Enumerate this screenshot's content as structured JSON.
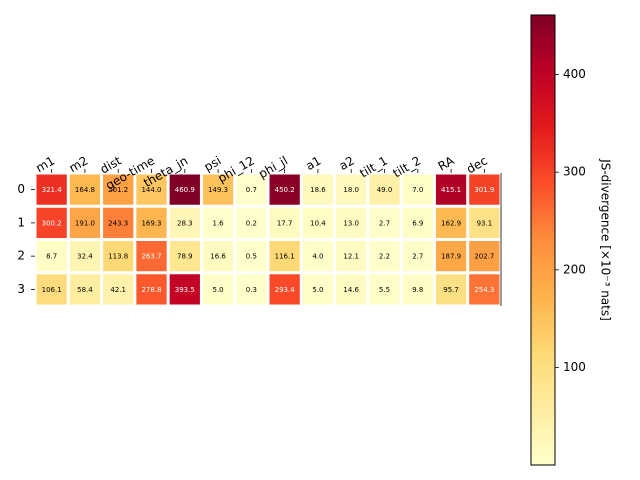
{
  "chart_data": {
    "type": "heatmap",
    "columns": [
      "m1",
      "m2",
      "dist",
      "geo-time",
      "theta_jn",
      "psi",
      "phi_12",
      "phi_jl",
      "a1",
      "a2",
      "tilt_1",
      "tilt_2",
      "RA",
      "dec"
    ],
    "rows": [
      "0",
      "1",
      "2",
      "3"
    ],
    "values": [
      [
        321.4,
        164.8,
        201.2,
        144.0,
        460.9,
        149.3,
        0.7,
        450.2,
        18.6,
        18.0,
        49.0,
        7.0,
        415.1,
        301.9
      ],
      [
        300.2,
        191.0,
        243.3,
        169.3,
        28.3,
        1.6,
        0.2,
        17.7,
        10.4,
        13.0,
        2.7,
        6.9,
        162.9,
        93.1
      ],
      [
        8.7,
        32.4,
        113.8,
        263.7,
        78.9,
        16.6,
        0.5,
        116.1,
        4.0,
        12.1,
        2.2,
        2.7,
        187.9,
        202.7
      ],
      [
        106.1,
        58.4,
        42.1,
        278.8,
        393.5,
        5.0,
        0.3,
        293.4,
        5.0,
        14.6,
        5.5,
        9.8,
        95.7,
        254.3
      ]
    ],
    "colorbar": {
      "label": "JS-divergence [×10⁻³ nats]",
      "ticks": [
        100,
        200,
        300,
        400
      ],
      "range": [
        0.2,
        460.9
      ],
      "colormap": "YlOrRd"
    }
  }
}
